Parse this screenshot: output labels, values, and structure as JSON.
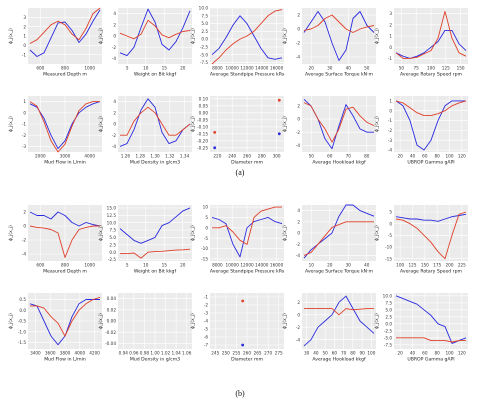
{
  "captions": {
    "a": "(a)",
    "b": "(b)"
  },
  "style": {
    "panel_bg": "#ebebeb",
    "grid": "#ffffff",
    "blue": "#2a2ae0",
    "red": "#e0402a"
  },
  "ylabel_a": "ϕ_j(x_j)",
  "chart_data": [
    {
      "figure": "a",
      "type": "line",
      "xlabel": "Measured Depth m",
      "xticks": [
        "600",
        "800",
        "1000"
      ],
      "yticks": [
        "-1",
        "0",
        "1",
        "2",
        "3"
      ],
      "ylim": [
        -2,
        4
      ],
      "series": [
        {
          "values": [
            -0.5,
            -1.2,
            -0.8,
            0.8,
            2.4,
            2.5,
            1.6,
            0.3,
            1.2,
            2.6,
            3.8
          ]
        },
        {
          "values": [
            0.2,
            0.6,
            1.4,
            2.2,
            2.6,
            2.2,
            1.2,
            0.6,
            1.8,
            3.4,
            4.0
          ]
        }
      ]
    },
    {
      "figure": "a",
      "type": "line",
      "xlabel": "Weight on Bit kkgf",
      "xticks": [
        "5",
        "10",
        "15",
        "20"
      ],
      "yticks": [
        "-4",
        "-2",
        "0",
        "2",
        "4"
      ],
      "ylim": [
        -5,
        5
      ],
      "series": [
        {
          "values": [
            -3,
            -3.5,
            -2,
            1.5,
            4.8,
            2.5,
            -1.5,
            -2.5,
            -1,
            1.5,
            4.5
          ]
        },
        {
          "values": [
            0.5,
            0,
            -0.5,
            0.3,
            2.8,
            1.8,
            0.2,
            -0.3,
            0.3,
            0.8,
            1
          ]
        }
      ]
    },
    {
      "figure": "a",
      "type": "line",
      "xlabel": "Average Standpipe Pressure kPa",
      "xticks": [
        "8000",
        "10000",
        "12000",
        "14000",
        "16000"
      ],
      "yticks": [
        "-7.5",
        "-5.0",
        "-2.5",
        "0.0",
        "2.5",
        "5.0",
        "7.5",
        "10.0"
      ],
      "ylim": [
        -8,
        10
      ],
      "series": [
        {
          "values": [
            -5,
            -3,
            0.5,
            4.5,
            7.5,
            5,
            1,
            -3,
            -6,
            -6.5,
            -6
          ]
        },
        {
          "values": [
            -8,
            -6,
            -3.5,
            -1.5,
            0,
            1,
            2.5,
            5,
            7.5,
            9,
            9.5
          ]
        }
      ]
    },
    {
      "figure": "a",
      "type": "line",
      "xlabel": "Average Surface Torque kN·m",
      "xticks": [
        "20",
        "30",
        "40",
        "50"
      ],
      "yticks": [
        "-4",
        "-2",
        "0",
        "2"
      ],
      "ylim": [
        -5,
        3
      ],
      "series": [
        {
          "values": [
            -0.5,
            1,
            2.5,
            1,
            -2,
            -4.5,
            -3,
            1.5,
            2.5,
            0.5,
            -0.5
          ]
        },
        {
          "values": [
            -0.2,
            0,
            0.5,
            1.5,
            2,
            1,
            0,
            -0.5,
            0,
            0.3,
            0.5
          ]
        }
      ]
    },
    {
      "figure": "a",
      "type": "line",
      "xlabel": "Average Rotary Speed rpm",
      "xticks": [
        "50",
        "75",
        "100",
        "125",
        "150"
      ],
      "yticks": [
        "-1",
        "0",
        "1",
        "2",
        "3"
      ],
      "ylim": [
        -1.5,
        3.5
      ],
      "series": [
        {
          "values": [
            -0.5,
            -0.8,
            -1,
            -0.8,
            -0.5,
            0,
            0.5,
            1.5,
            1.5,
            0.3,
            -0.3
          ]
        },
        {
          "values": [
            -0.5,
            -1,
            -1,
            -0.9,
            -0.6,
            -0.3,
            0.8,
            3.2,
            0.8,
            -0.5,
            -0.8
          ]
        }
      ]
    },
    {
      "figure": "a",
      "type": "line",
      "xlabel": "Mud Flow in L/min",
      "xticks": [
        "2000",
        "3000",
        "4000"
      ],
      "yticks": [
        "-3",
        "-2",
        "-1",
        "0",
        "1"
      ],
      "ylim": [
        -3.5,
        1.5
      ],
      "series": [
        {
          "values": [
            0.8,
            0.5,
            -0.5,
            -2,
            -3.2,
            -2.5,
            -1,
            0,
            0.5,
            0.8,
            1
          ]
        },
        {
          "values": [
            1,
            0.6,
            -0.8,
            -2.5,
            -3.5,
            -2.8,
            -1.2,
            0.2,
            0.8,
            1,
            1
          ]
        }
      ]
    },
    {
      "figure": "a",
      "type": "line",
      "xlabel": "Mud Density in g/cm3",
      "xticks": [
        "1.26",
        "1.28",
        "1.30",
        "1.32",
        "1.34"
      ],
      "yticks": [
        "-4",
        "-2",
        "0",
        "2",
        "4"
      ],
      "ylim": [
        -5,
        5
      ],
      "series": [
        {
          "values": [
            -4,
            -3.5,
            -1,
            2.5,
            4.5,
            3,
            -1.5,
            -3.5,
            -3,
            -1,
            0
          ]
        },
        {
          "values": [
            -2,
            -2,
            0.5,
            2,
            3,
            2,
            0,
            -2,
            -2,
            -1,
            0
          ]
        }
      ]
    },
    {
      "figure": "a",
      "type": "scatter",
      "xlabel": "Diameter mm",
      "xticks": [
        "220",
        "240",
        "260",
        "280",
        "300"
      ],
      "yticks": [
        "-0.25",
        "-0.20",
        "-0.15",
        "-0.10",
        "-0.05",
        "0.00",
        "0.05",
        "0.10"
      ],
      "ylim": [
        -0.28,
        0.12
      ],
      "points": [
        {
          "x": 215,
          "y": -0.14,
          "series": "red"
        },
        {
          "x": 215,
          "y": -0.25,
          "series": "blue"
        },
        {
          "x": 311,
          "y": 0.09,
          "series": "red"
        },
        {
          "x": 311,
          "y": -0.15,
          "series": "blue"
        }
      ],
      "xlim": [
        208,
        318
      ]
    },
    {
      "figure": "a",
      "type": "line",
      "xlabel": "Average Hookload kkgf",
      "xticks": [
        "50",
        "60",
        "70",
        "80"
      ],
      "yticks": [
        "-4",
        "-2",
        "0",
        "2"
      ],
      "ylim": [
        -5,
        3.5
      ],
      "series": [
        {
          "values": [
            3,
            2,
            0,
            -3,
            -4.5,
            -1,
            2.2,
            0.5,
            -1.5,
            -2,
            -2
          ]
        },
        {
          "values": [
            2.5,
            2,
            0,
            -1.5,
            -3.5,
            -1.5,
            1.5,
            1.8,
            0.5,
            -0.5,
            -1
          ]
        }
      ]
    },
    {
      "figure": "a",
      "type": "line",
      "xlabel": "UBROP Gamma gAPI",
      "xticks": [
        "20",
        "40",
        "60",
        "80",
        "100",
        "120"
      ],
      "yticks": [
        "-4",
        "-3",
        "-2",
        "-1",
        "0",
        "1"
      ],
      "ylim": [
        -4.2,
        1.5
      ],
      "series": [
        {
          "values": [
            1,
            0.5,
            -1,
            -3.5,
            -4,
            -3,
            -1,
            0.5,
            1,
            1,
            1
          ]
        },
        {
          "values": [
            1,
            0.8,
            0.3,
            -0.2,
            -0.5,
            -0.5,
            -0.3,
            0,
            0.5,
            0.8,
            1
          ]
        }
      ]
    },
    {
      "figure": "b",
      "type": "line",
      "xlabel": "Measured Depth m",
      "xticks": [
        "600",
        "800",
        "1000"
      ],
      "yticks": [
        "-4",
        "-2",
        "0",
        "2"
      ],
      "ylim": [
        -5,
        3
      ],
      "series": [
        {
          "values": [
            2,
            1.5,
            1.5,
            1,
            2,
            1.5,
            0.5,
            0,
            0.5,
            0.2,
            0
          ]
        },
        {
          "values": [
            0,
            -0.2,
            -0.3,
            -0.5,
            -1,
            -4.5,
            -2,
            -0.5,
            -0.2,
            0,
            0
          ]
        }
      ]
    },
    {
      "figure": "b",
      "type": "line",
      "xlabel": "Weight on Bit kkgf",
      "xticks": [
        "5",
        "10",
        "15",
        "20"
      ],
      "yticks": [
        "-2.5",
        "0.0",
        "2.5",
        "5.0",
        "7.5",
        "10.0",
        "12.5",
        "15.0"
      ],
      "ylim": [
        -3,
        16
      ],
      "series": [
        {
          "values": [
            8,
            6,
            4,
            3,
            4,
            5,
            9,
            10,
            12,
            14,
            15
          ]
        },
        {
          "values": [
            -0.5,
            -0.5,
            -0.3,
            -2,
            0,
            0.2,
            0.3,
            0.5,
            0.7,
            0.8,
            1
          ]
        }
      ]
    },
    {
      "figure": "b",
      "type": "line",
      "xlabel": "Average Standpipe Pressure kPa",
      "xticks": [
        "8000",
        "10000",
        "12000",
        "14000",
        "16000"
      ],
      "yticks": [
        "-15",
        "-10",
        "-5",
        "0",
        "5",
        "10"
      ],
      "ylim": [
        -16,
        11
      ],
      "series": [
        {
          "values": [
            5,
            4,
            2,
            -8,
            -14,
            0,
            3,
            4,
            5,
            3,
            2
          ]
        },
        {
          "values": [
            0,
            0,
            1,
            -2,
            -6,
            -8,
            5,
            8,
            9,
            10,
            10
          ]
        }
      ]
    },
    {
      "figure": "b",
      "type": "line",
      "xlabel": "Average Surface Torque kN·m",
      "xticks": [
        "10",
        "20",
        "30",
        "40"
      ],
      "yticks": [
        "-4",
        "-2",
        "0",
        "2",
        "4"
      ],
      "ylim": [
        -5,
        5
      ],
      "series": [
        {
          "values": [
            -4.5,
            -3,
            -2,
            -1,
            0,
            3,
            5,
            5,
            4,
            3.5,
            3
          ]
        },
        {
          "values": [
            -4,
            -3.5,
            -2,
            -0.5,
            1,
            1.5,
            2,
            2,
            2,
            2,
            2
          ]
        }
      ]
    },
    {
      "figure": "b",
      "type": "line",
      "xlabel": "Average Rotary Speed rpm",
      "xticks": [
        "100",
        "125",
        "150",
        "175",
        "200",
        "225"
      ],
      "yticks": [
        "-15",
        "-10",
        "-5",
        "0",
        "5"
      ],
      "ylim": [
        -16,
        8
      ],
      "series": [
        {
          "values": [
            3,
            2.5,
            2,
            2,
            1.5,
            1.5,
            1,
            2,
            3,
            3.5,
            4
          ]
        },
        {
          "values": [
            2,
            1.5,
            0,
            -2,
            -5,
            -8,
            -12,
            -15,
            -5,
            4,
            5
          ]
        }
      ]
    },
    {
      "figure": "b",
      "type": "line",
      "xlabel": "Mud Flow in L/min",
      "xticks": [
        "3400",
        "3600",
        "3800",
        "4000",
        "4200"
      ],
      "yticks": [
        "-1.5",
        "-1.0",
        "-0.5",
        "0.0",
        "0.5"
      ],
      "ylim": [
        -1.8,
        0.8
      ],
      "series": [
        {
          "values": [
            0.3,
            0.2,
            -0.5,
            -1.2,
            -1.6,
            -1.2,
            -0.3,
            0.3,
            0.5,
            0.5,
            0.5
          ]
        },
        {
          "values": [
            0.2,
            0.2,
            0.1,
            -0.3,
            -0.6,
            -1.2,
            -0.5,
            0,
            0.3,
            0.5,
            0.6
          ]
        }
      ]
    },
    {
      "figure": "b",
      "type": "line",
      "xlabel": "Mud Density in g/cm3",
      "xticks": [
        "0.94",
        "0.96",
        "0.98",
        "1.00",
        "1.02",
        "1.04",
        "1.06"
      ],
      "yticks": [
        "-0.04",
        "-0.02",
        "0.00",
        "0.02",
        "0.04"
      ],
      "ylim": [
        -0.05,
        0.05
      ],
      "series": []
    },
    {
      "figure": "b",
      "type": "scatter",
      "xlabel": "Diameter mm",
      "xticks": [
        "245",
        "250",
        "255",
        "260",
        "265",
        "270",
        "275"
      ],
      "yticks": [
        "-7",
        "-6",
        "-5",
        "-4",
        "-3",
        "-2",
        "-1"
      ],
      "ylim": [
        -7.5,
        -0.5
      ],
      "points": [
        {
          "x": 258,
          "y": -1.5,
          "series": "red"
        },
        {
          "x": 258,
          "y": -7.0,
          "series": "blue"
        }
      ],
      "xlim": [
        243,
        277
      ]
    },
    {
      "figure": "b",
      "type": "line",
      "xlabel": "Average Hookload kkgf",
      "xticks": [
        "30",
        "40",
        "50",
        "60",
        "70",
        "80",
        "90",
        "100"
      ],
      "yticks": [
        "-4",
        "-2",
        "0",
        "2"
      ],
      "ylim": [
        -5.5,
        3.5
      ],
      "series": [
        {
          "values": [
            -5,
            -4,
            -2,
            -1,
            0,
            2,
            3,
            1,
            -1,
            -2,
            -3
          ]
        },
        {
          "values": [
            1,
            1,
            1,
            1,
            1,
            0,
            1,
            0.8,
            0.9,
            1,
            1
          ]
        }
      ]
    },
    {
      "figure": "b",
      "type": "line",
      "xlabel": "UBROP Gamma gAPI",
      "xticks": [
        "20",
        "40",
        "60",
        "80",
        "100",
        "120"
      ],
      "yticks": [
        "-7.5",
        "-5.0",
        "-2.5",
        "0.0",
        "2.5",
        "5.0",
        "7.5",
        "10.0"
      ],
      "ylim": [
        -9,
        11
      ],
      "series": [
        {
          "values": [
            10,
            9,
            8,
            7,
            5,
            3,
            0,
            -1,
            -7,
            -6,
            -5
          ]
        },
        {
          "values": [
            -5,
            -5,
            -5,
            -5,
            -5,
            -6,
            -6,
            -6,
            -6.5,
            -6,
            -6
          ]
        }
      ]
    }
  ]
}
